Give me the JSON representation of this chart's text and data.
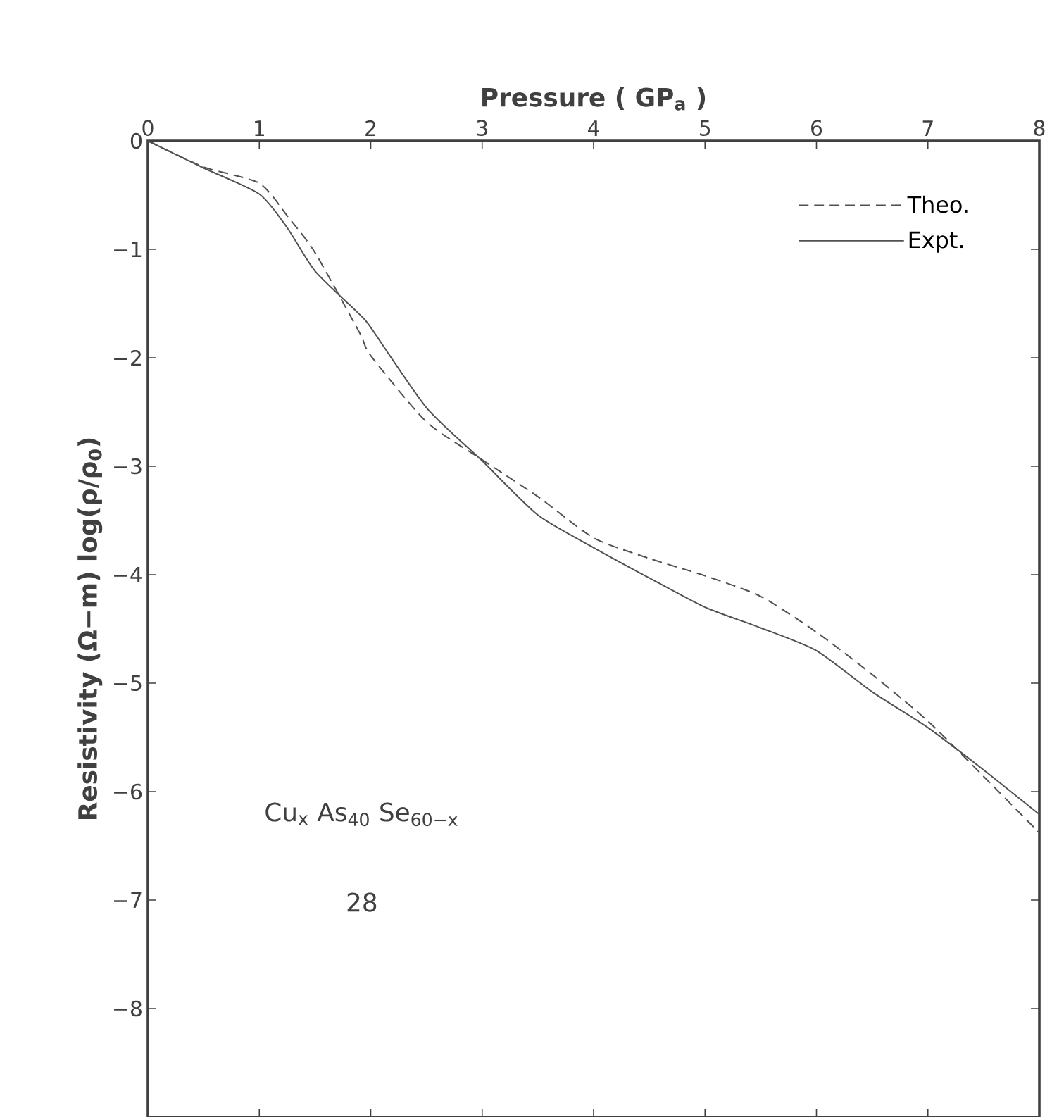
{
  "chart_data": {
    "type": "line",
    "xlabel": "Pressure ( GP$_{a}$ )",
    "ylabel": "Resistivity (Ω−m) log(ρ/ρ$_{0}$)",
    "x": [
      0,
      0.5,
      1,
      1.25,
      1.5,
      1.9,
      2,
      2.5,
      3,
      3.5,
      4,
      4.5,
      5,
      5.5,
      6,
      6.5,
      7,
      7.5,
      8
    ],
    "series": [
      {
        "name": "Theo.",
        "color": "#555050",
        "line_style": "dashed",
        "values": [
          0,
          -0.24,
          -0.39,
          -0.69,
          -1.03,
          -1.77,
          -1.98,
          -2.59,
          -2.94,
          -3.28,
          -3.66,
          -3.85,
          -4.01,
          -4.2,
          -4.53,
          -4.92,
          -5.35,
          -5.86,
          -6.38
        ]
      },
      {
        "name": "Expt.",
        "color": "#555050",
        "line_style": "solid",
        "values": [
          0,
          -0.25,
          -0.49,
          -0.8,
          -1.2,
          -1.6,
          -1.72,
          -2.46,
          -2.95,
          -3.45,
          -3.75,
          -4.03,
          -4.3,
          -4.49,
          -4.7,
          -5.08,
          -5.41,
          -5.8,
          -6.21
        ]
      }
    ],
    "xlim": [
      0,
      8
    ],
    "ylim": [
      -9,
      0
    ],
    "xticks": [
      0,
      1,
      2,
      3,
      4,
      5,
      6,
      7,
      8
    ],
    "yticks": [
      {
        "value": -8,
        "label": "−8"
      },
      {
        "value": -7,
        "label": "−7"
      },
      {
        "value": -6,
        "label": "−6"
      },
      {
        "value": -5,
        "label": "−5"
      },
      {
        "value": -4,
        "label": "−4"
      },
      {
        "value": -3,
        "label": "−3"
      },
      {
        "value": -2,
        "label": "−2"
      },
      {
        "value": -1,
        "label": "−1"
      },
      0
    ],
    "legend": "top right",
    "grid": false,
    "annotations": [
      "Cu$_{x}$ As$_{40}$ Se$_{60−x}$",
      "28"
    ]
  }
}
